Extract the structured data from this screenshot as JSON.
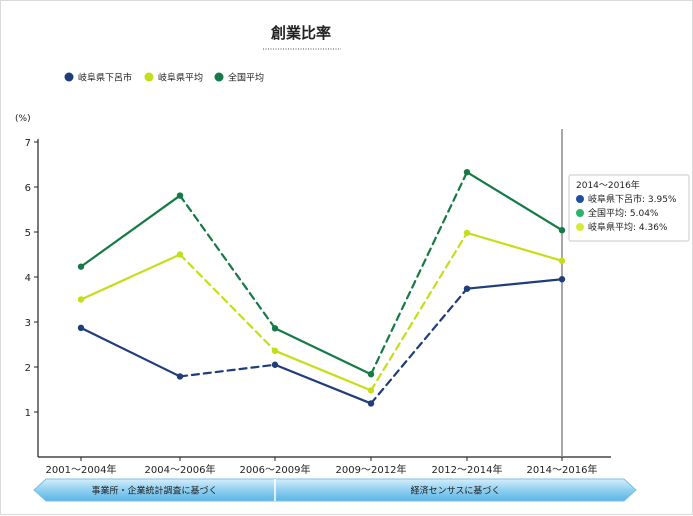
{
  "chart_data": {
    "type": "line",
    "title": "創業比率",
    "ylabel": "(%)",
    "ylim": [
      0,
      7
    ],
    "yticks": [
      1,
      2,
      3,
      4,
      5,
      6,
      7
    ],
    "categories": [
      "2001～2004年",
      "2004～2006年",
      "2006～2009年",
      "2009～2012年",
      "2012～2014年",
      "2014～2016年"
    ],
    "series": [
      {
        "name": "岐阜県下呂市",
        "color": "#1f3d7a",
        "values": [
          2.87,
          1.79,
          2.05,
          1.19,
          3.74,
          3.95
        ]
      },
      {
        "name": "岐阜県平均",
        "color": "#c6de1a",
        "values": [
          3.5,
          4.5,
          2.36,
          1.48,
          4.98,
          4.36
        ]
      },
      {
        "name": "全国平均",
        "color": "#167a46",
        "values": [
          4.23,
          5.81,
          2.86,
          1.84,
          6.33,
          5.04
        ]
      }
    ],
    "dashed_segments": [
      [
        1,
        2
      ],
      [
        3,
        4
      ]
    ],
    "legend_position": "top-left",
    "grid": false,
    "highlight_index": 5,
    "tooltip": {
      "title": "2014～2016年",
      "rows": [
        {
          "label": "岐阜県下呂市: 3.95%",
          "color": "#1f4fa0"
        },
        {
          "label": "全国平均: 5.04%",
          "color": "#2bb36a"
        },
        {
          "label": "岐阜県平均: 4.36%",
          "color": "#d5ec3c"
        }
      ]
    },
    "source_bands": [
      {
        "label": "事業所・企業統計調査に基づく",
        "from": 0,
        "to": 2
      },
      {
        "label": "経済センサスに基づく",
        "from": 2,
        "to": 5
      }
    ]
  }
}
